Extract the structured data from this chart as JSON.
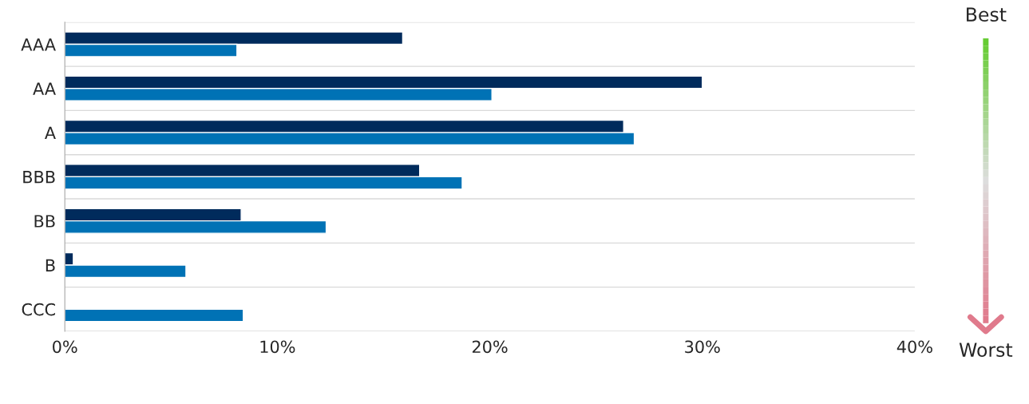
{
  "chart_data": {
    "type": "bar",
    "orientation": "horizontal",
    "categories": [
      "AAA",
      "AA",
      "A",
      "BBB",
      "BB",
      "B",
      "CCC"
    ],
    "series": [
      {
        "color": "#002b5c",
        "values": [
          15.9,
          30.0,
          26.3,
          16.7,
          8.3,
          0.4,
          null
        ]
      },
      {
        "color": "#0072b5",
        "values": [
          8.1,
          20.1,
          26.8,
          18.7,
          12.3,
          5.7,
          8.4
        ]
      }
    ],
    "xlim": [
      0,
      40
    ],
    "xticks": [
      {
        "value": 0,
        "label": "0%"
      },
      {
        "value": 10,
        "label": "10%"
      },
      {
        "value": 20,
        "label": "20%"
      },
      {
        "value": 30,
        "label": "30%"
      },
      {
        "value": 40,
        "label": "40%"
      }
    ],
    "grid": "y",
    "annotations": [
      "Best",
      "Worst"
    ]
  }
}
